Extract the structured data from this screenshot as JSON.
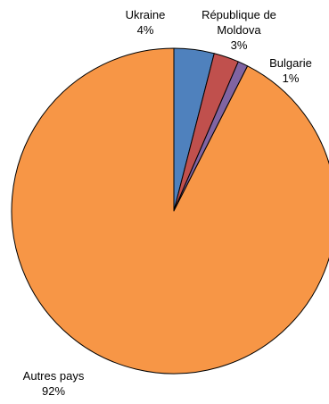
{
  "chart_data": {
    "type": "pie",
    "slices": [
      {
        "label_lines": [
          "Ukraine"
        ],
        "value_label": "4%",
        "value": 4.0,
        "color": "#4F81BD"
      },
      {
        "label_lines": [
          "République de",
          "Moldova"
        ],
        "value_label": "3%",
        "value": 2.5,
        "color": "#C0504D"
      },
      {
        "label_lines": [
          "Bulgarie"
        ],
        "value_label": "1%",
        "value": 1.0,
        "color": "#8064A2"
      },
      {
        "label_lines": [
          "Autres pays"
        ],
        "value_label": "92%",
        "value": 92.5,
        "color": "#F79646"
      }
    ]
  }
}
